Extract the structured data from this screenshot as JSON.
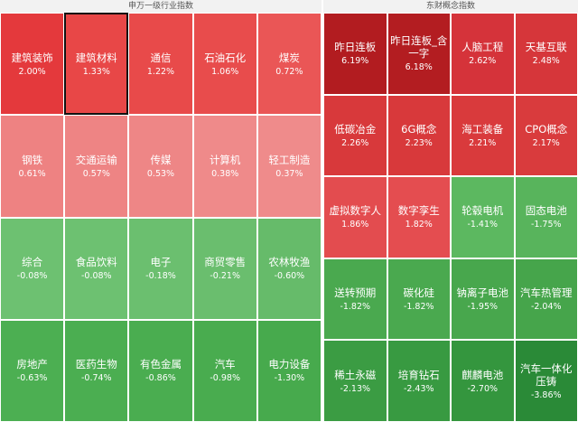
{
  "panels": [
    {
      "title": "申万一级行业指数",
      "columns": 5,
      "cells": [
        {
          "name": "建筑装饰",
          "value": "2.00%",
          "color": "#e4393c"
        },
        {
          "name": "建筑材料",
          "value": "1.33%",
          "color": "#e84747"
        },
        {
          "name": "通信",
          "value": "1.22%",
          "color": "#e84a4a"
        },
        {
          "name": "石油石化",
          "value": "1.06%",
          "color": "#e84c4c"
        },
        {
          "name": "煤炭",
          "value": "0.72%",
          "color": "#ea5656"
        },
        {
          "name": "钢铁",
          "value": "0.61%",
          "color": "#ee8282"
        },
        {
          "name": "交通运输",
          "value": "0.57%",
          "color": "#ee8484"
        },
        {
          "name": "传媒",
          "value": "0.53%",
          "color": "#ee8686"
        },
        {
          "name": "计算机",
          "value": "0.38%",
          "color": "#ef8a8a"
        },
        {
          "name": "轻工制造",
          "value": "0.37%",
          "color": "#ef8b8b"
        },
        {
          "name": "综合",
          "value": "-0.08%",
          "color": "#6dc171"
        },
        {
          "name": "食品饮料",
          "value": "-0.08%",
          "color": "#6dc171"
        },
        {
          "name": "电子",
          "value": "-0.18%",
          "color": "#6bbf6f"
        },
        {
          "name": "商贸零售",
          "value": "-0.21%",
          "color": "#6abe6e"
        },
        {
          "name": "农林牧渔",
          "value": "-0.60%",
          "color": "#66bb6a"
        },
        {
          "name": "房地产",
          "value": "-0.63%",
          "color": "#4caf52"
        },
        {
          "name": "医药生物",
          "value": "-0.74%",
          "color": "#4bae51"
        },
        {
          "name": "有色金属",
          "value": "-0.86%",
          "color": "#4aad50"
        },
        {
          "name": "汽车",
          "value": "-0.98%",
          "color": "#49ac4f"
        },
        {
          "name": "电力设备",
          "value": "-1.30%",
          "color": "#47aa4d"
        }
      ]
    },
    {
      "title": "东财概念指数",
      "columns": 4,
      "cells": [
        {
          "name": "昨日连板",
          "value": "6.19%",
          "color": "#b21c20"
        },
        {
          "name": "昨日连板_含一字",
          "value": "6.18%",
          "color": "#b31d21"
        },
        {
          "name": "人脑工程",
          "value": "2.62%",
          "color": "#d5333a"
        },
        {
          "name": "天基互联",
          "value": "2.48%",
          "color": "#d6363a"
        },
        {
          "name": "低碳冶金",
          "value": "2.26%",
          "color": "#d8393b"
        },
        {
          "name": "6G概念",
          "value": "2.23%",
          "color": "#d8393b"
        },
        {
          "name": "海工装备",
          "value": "2.21%",
          "color": "#d93a3c"
        },
        {
          "name": "CPO概念",
          "value": "2.17%",
          "color": "#d93b3d"
        },
        {
          "name": "虚拟数字人",
          "value": "1.86%",
          "color": "#e34c4f"
        },
        {
          "name": "数字孪生",
          "value": "1.82%",
          "color": "#e44d50"
        },
        {
          "name": "轮毂电机",
          "value": "-1.41%",
          "color": "#5cb860"
        },
        {
          "name": "固态电池",
          "value": "-1.75%",
          "color": "#58b45c"
        },
        {
          "name": "送转预期",
          "value": "-1.82%",
          "color": "#4aa94f"
        },
        {
          "name": "碳化硅",
          "value": "-1.82%",
          "color": "#4aa94f"
        },
        {
          "name": "钠离子电池",
          "value": "-1.95%",
          "color": "#48a74d"
        },
        {
          "name": "汽车热管理",
          "value": "-2.04%",
          "color": "#46a54b"
        },
        {
          "name": "稀土永磁",
          "value": "-2.13%",
          "color": "#3b9c43"
        },
        {
          "name": "培育钻石",
          "value": "-2.43%",
          "color": "#389a41"
        },
        {
          "name": "麒麟电池",
          "value": "-2.70%",
          "color": "#34963e"
        },
        {
          "name": "汽车一体化压铸",
          "value": "-3.86%",
          "color": "#2a8a37"
        }
      ]
    }
  ]
}
